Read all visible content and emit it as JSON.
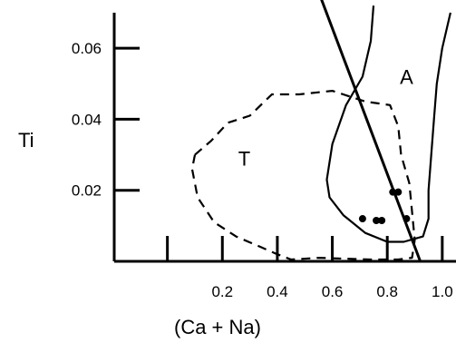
{
  "chart_data": {
    "type": "scatter",
    "title": "",
    "xlabel": "(Ca + Na)",
    "ylabel": "Ti",
    "xlim": [
      -0.2,
      1.05
    ],
    "ylim": [
      0.0,
      0.07
    ],
    "xticks": [
      0.0,
      0.2,
      0.4,
      0.6,
      0.8,
      1.0
    ],
    "xtick_labels": [
      "",
      "0.2",
      "0.4",
      "0.6",
      "0.8",
      "1.0"
    ],
    "yticks": [
      0.02,
      0.04,
      0.06
    ],
    "ytick_labels": [
      "0.02",
      "0.04",
      "0.06"
    ],
    "grid": false,
    "series": [
      {
        "points": [
          {
            "x": 0.71,
            "y": 0.012
          },
          {
            "x": 0.76,
            "y": 0.0115
          },
          {
            "x": 0.78,
            "y": 0.0115
          },
          {
            "x": 0.82,
            "y": 0.0195
          },
          {
            "x": 0.84,
            "y": 0.0195
          },
          {
            "x": 0.87,
            "y": 0.012
          }
        ]
      }
    ],
    "regions": [
      {
        "label": "T",
        "style": "dashed",
        "label_at": {
          "x": 0.28,
          "y": 0.027
        },
        "outline": [
          {
            "x": 0.1,
            "y": 0.03
          },
          {
            "x": 0.16,
            "y": 0.034
          },
          {
            "x": 0.22,
            "y": 0.039
          },
          {
            "x": 0.3,
            "y": 0.041
          },
          {
            "x": 0.38,
            "y": 0.047
          },
          {
            "x": 0.48,
            "y": 0.047
          },
          {
            "x": 0.6,
            "y": 0.048
          },
          {
            "x": 0.72,
            "y": 0.045
          },
          {
            "x": 0.81,
            "y": 0.044
          },
          {
            "x": 0.84,
            "y": 0.038
          },
          {
            "x": 0.85,
            "y": 0.03
          },
          {
            "x": 0.88,
            "y": 0.022
          },
          {
            "x": 0.89,
            "y": 0.014
          },
          {
            "x": 0.9,
            "y": 0.006
          },
          {
            "x": 0.89,
            "y": 0.001
          },
          {
            "x": 0.84,
            "y": 0.0005
          },
          {
            "x": 0.74,
            "y": 0.0005
          },
          {
            "x": 0.55,
            "y": 0.001
          },
          {
            "x": 0.45,
            "y": 0.0005
          },
          {
            "x": 0.4,
            "y": 0.002
          },
          {
            "x": 0.34,
            "y": 0.004
          },
          {
            "x": 0.25,
            "y": 0.007
          },
          {
            "x": 0.17,
            "y": 0.011
          },
          {
            "x": 0.11,
            "y": 0.018
          },
          {
            "x": 0.09,
            "y": 0.026
          },
          {
            "x": 0.1,
            "y": 0.03
          }
        ]
      },
      {
        "label": "A",
        "style": "solid",
        "label_at": {
          "x": 0.87,
          "y": 0.05
        },
        "outline": [
          {
            "x": 0.75,
            "y": 0.072
          },
          {
            "x": 0.74,
            "y": 0.062
          },
          {
            "x": 0.71,
            "y": 0.052
          },
          {
            "x": 0.65,
            "y": 0.044
          },
          {
            "x": 0.6,
            "y": 0.033
          },
          {
            "x": 0.58,
            "y": 0.023
          },
          {
            "x": 0.59,
            "y": 0.018
          },
          {
            "x": 0.64,
            "y": 0.013
          },
          {
            "x": 0.72,
            "y": 0.008
          },
          {
            "x": 0.8,
            "y": 0.0055
          },
          {
            "x": 0.86,
            "y": 0.0055
          },
          {
            "x": 0.93,
            "y": 0.007
          },
          {
            "x": 0.95,
            "y": 0.012
          },
          {
            "x": 0.95,
            "y": 0.02
          },
          {
            "x": 0.96,
            "y": 0.03
          },
          {
            "x": 0.97,
            "y": 0.04
          },
          {
            "x": 0.98,
            "y": 0.05
          },
          {
            "x": 1.0,
            "y": 0.06
          },
          {
            "x": 1.03,
            "y": 0.07
          }
        ]
      }
    ],
    "lines": [
      {
        "from": {
          "x": 0.53,
          "y": 0.08
        },
        "to": {
          "x": 0.92,
          "y": 0.0
        }
      }
    ]
  }
}
